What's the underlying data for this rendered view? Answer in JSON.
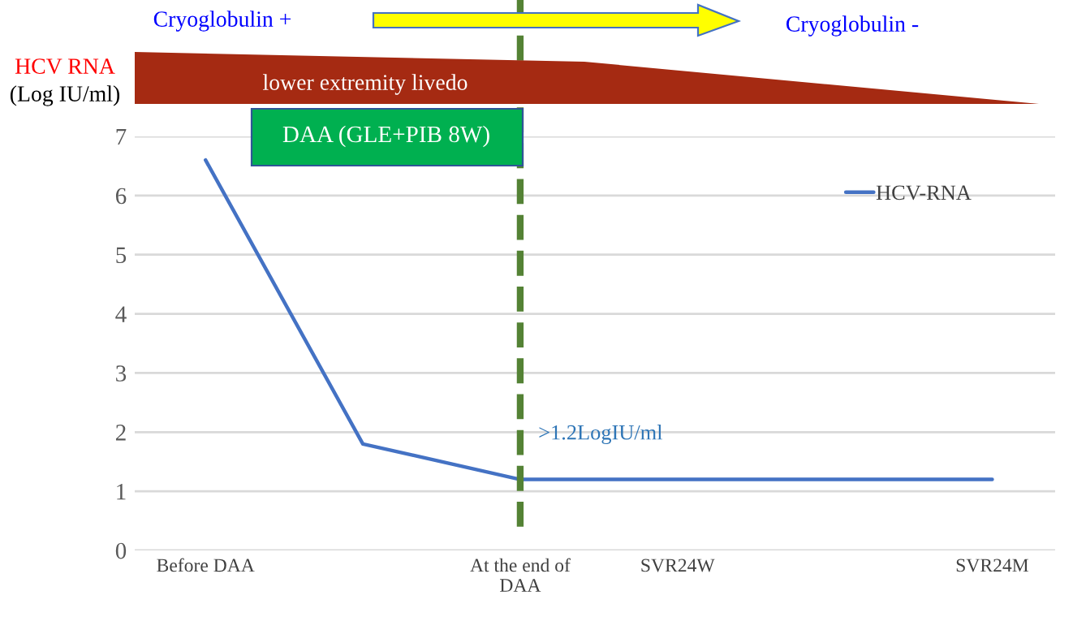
{
  "chart_data": {
    "type": "line",
    "ylabel": "HCV RNA\n(Log IU/ml)",
    "categories": [
      "Before DAA",
      null,
      "At the end of\nDAA",
      "SVR24W",
      null,
      "SVR24M"
    ],
    "series": [
      {
        "name": "HCV-RNA",
        "color": "#4472c4",
        "values": [
          6.6,
          1.8,
          1.2,
          1.2,
          1.2,
          1.2
        ]
      }
    ],
    "ylim": [
      0,
      7
    ],
    "yticks": [
      0,
      1,
      2,
      3,
      4,
      5,
      6,
      7
    ],
    "grid": "y",
    "legend": "top right",
    "marker": "none",
    "line_style": "solid",
    "ref_lines": [
      {
        "axis": "x",
        "value": "At the end of\nDAA",
        "color": "#548235",
        "line_style": "dashed"
      }
    ],
    "annotations": [
      "Cryoglobulin +",
      "Cryoglobulin -",
      "lower extremity livedo",
      "DAA (GLE+PIB 8W)",
      {
        "text": ">1.2LogIU/ml",
        "x": "At the end of\nDAA",
        "y": 1.2
      }
    ]
  }
}
